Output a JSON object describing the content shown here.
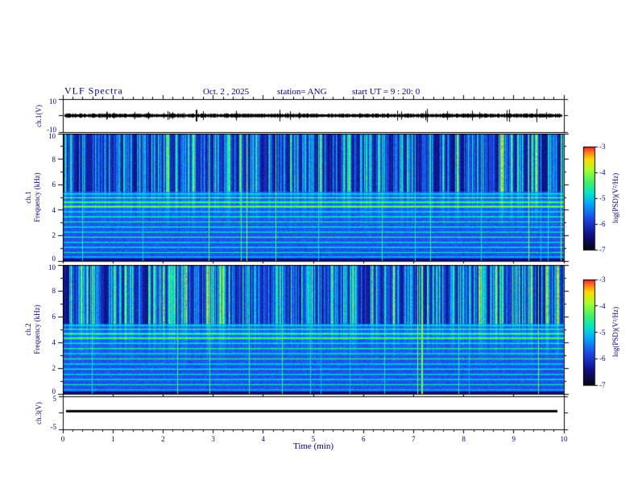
{
  "header": {
    "title": "VLF Spectra",
    "date": "Oct. 2  , 2025",
    "station": "station= ANG",
    "start_ut": "start UT =   9 : 20: 0"
  },
  "x_axis": {
    "label": "Time (min)",
    "tick_labels": [
      "0",
      "1",
      "2",
      "3",
      "4",
      "5",
      "6",
      "7",
      "8",
      "9",
      "10"
    ],
    "tick_values": [
      0,
      1,
      2,
      3,
      4,
      5,
      6,
      7,
      8,
      9,
      10
    ],
    "range": [
      0,
      10
    ]
  },
  "panels": {
    "ch1v": {
      "label": "ch.1(V)",
      "tick_labels": [
        "10",
        "-10"
      ],
      "tick_values": [
        10,
        -10
      ],
      "range": [
        -10,
        10
      ]
    },
    "ch1spec": {
      "label1": "ch.1",
      "label2": "Frequency (kHz)",
      "tick_labels": [
        "10",
        "8",
        "6",
        "4",
        "2",
        "0"
      ],
      "tick_values": [
        10,
        8,
        6,
        4,
        2,
        0
      ],
      "range": [
        0,
        10
      ]
    },
    "ch2spec": {
      "label1": "ch.2",
      "label2": "Frequency (kHz)",
      "tick_labels": [
        "10",
        "8",
        "6",
        "4",
        "2",
        "0"
      ],
      "tick_values": [
        10,
        8,
        6,
        4,
        2,
        0
      ],
      "range": [
        0,
        10
      ]
    },
    "ch3v": {
      "label": "ch.3(V)",
      "tick_labels": [
        "5",
        "-5"
      ],
      "tick_values": [
        5,
        -5
      ],
      "range": [
        -5,
        5
      ],
      "value_v": 0.5
    }
  },
  "colorbar": {
    "label": "log(PSD)(V²/Hz)",
    "tick_labels": [
      "-3",
      "-4",
      "-5",
      "-6",
      "-7"
    ],
    "tick_values": [
      -3,
      -4,
      -5,
      -6,
      -7
    ],
    "range": [
      -7,
      -3
    ]
  },
  "chart_data": [
    {
      "type": "line",
      "series": "ch.1(V) waveform",
      "xlabel": "Time (min)",
      "xlim": [
        0,
        10
      ],
      "ylabel": "ch.1(V)",
      "ylim": [
        -10,
        10
      ],
      "description": "dense broadband noise waveform centered on 0 V, typical amplitude about ±1–2 V with frequent impulsive spikes to roughly ±4 V over the full 10 minute record"
    },
    {
      "type": "heatmap",
      "series": "ch.1 VLF spectrogram",
      "xlabel": "Time (min)",
      "xlim": [
        0,
        10
      ],
      "ylabel": "Frequency (kHz)",
      "ylim": [
        0,
        10
      ],
      "zlabel": "log(PSD)(V²/Hz)",
      "zlim": [
        -7,
        -3
      ],
      "background_psd": -6.3,
      "sferic_band_kHz": [
        5.5,
        10
      ],
      "sferic_description": "dense vertical impulsive sferic streaks (psd ≈ -5 to -4) separated by near-black quiet gaps, quasi-continuous for all 10 min",
      "horizontal_lines": [
        [
          0.35,
          0.22
        ],
        [
          0.7,
          0.28
        ],
        [
          1.1,
          0.34
        ],
        [
          1.5,
          0.3
        ],
        [
          1.9,
          0.38
        ],
        [
          2.3,
          0.3
        ],
        [
          2.7,
          0.34
        ],
        [
          3.1,
          0.3
        ],
        [
          3.5,
          0.4
        ],
        [
          3.9,
          0.34
        ],
        [
          4.3,
          0.48
        ],
        [
          4.65,
          0.44
        ],
        [
          5.0,
          0.4
        ],
        [
          5.3,
          0.3
        ]
      ],
      "strongest_lines_kHz": [
        4.3,
        4.65,
        5.0
      ],
      "streak_density": 0.48,
      "streak_amp": 0.85
    },
    {
      "type": "heatmap",
      "series": "ch.2 VLF spectrogram",
      "xlabel": "Time (min)",
      "xlim": [
        0,
        10
      ],
      "ylabel": "Frequency (kHz)",
      "ylim": [
        0,
        10
      ],
      "zlabel": "log(PSD)(V²/Hz)",
      "zlim": [
        -7,
        -3
      ],
      "background_psd": -6.2,
      "sferic_band_kHz": [
        5.5,
        10
      ],
      "sferic_description": "same impulsive streak structure as ch.1 but brighter/greener (slightly higher psd) in the 6–10 kHz band",
      "horizontal_lines": [
        [
          0.35,
          0.2
        ],
        [
          0.75,
          0.3
        ],
        [
          1.15,
          0.32
        ],
        [
          1.55,
          0.3
        ],
        [
          1.95,
          0.36
        ],
        [
          2.35,
          0.3
        ],
        [
          2.75,
          0.34
        ],
        [
          3.15,
          0.32
        ],
        [
          3.55,
          0.38
        ],
        [
          3.95,
          0.34
        ],
        [
          4.35,
          0.46
        ],
        [
          4.7,
          0.42
        ],
        [
          5.05,
          0.38
        ],
        [
          5.35,
          0.3
        ]
      ],
      "strongest_lines_kHz": [
        4.35,
        4.7,
        5.05
      ],
      "streak_density": 0.58,
      "streak_amp": 0.95
    },
    {
      "type": "line",
      "series": "ch.3(V)",
      "xlabel": "Time (min)",
      "xlim": [
        0,
        10
      ],
      "ylabel": "ch.3(V)",
      "ylim": [
        -5,
        5
      ],
      "description": "flat constant trace at about +0.5 V for the entire record (thick black line)"
    }
  ]
}
